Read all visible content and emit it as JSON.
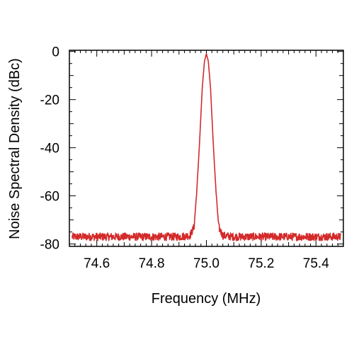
{
  "chart_data": {
    "type": "line",
    "title": "",
    "xlabel": "Frequency (MHz)",
    "ylabel": "Noise Spectral Density (dBc)",
    "xlim": [
      74.5,
      75.5
    ],
    "ylim": [
      -81,
      0.5
    ],
    "x_ticks": [
      "74.6",
      "74.8",
      "75.0",
      "75.2",
      "75.4"
    ],
    "y_ticks": [
      "0",
      "-20",
      "-40",
      "-60",
      "-80"
    ],
    "grid": false,
    "legend": "none",
    "series": [
      {
        "color": "#d42a2a",
        "x": [
          74.51,
          74.6,
          74.7,
          74.8,
          74.9,
          74.94,
          74.955,
          74.965,
          74.975,
          74.985,
          74.993,
          75.0,
          75.007,
          75.015,
          75.025,
          75.035,
          75.045,
          75.06,
          75.1,
          75.2,
          75.3,
          75.4,
          75.49
        ],
        "y": [
          -77,
          -77,
          -77,
          -77,
          -77,
          -76.5,
          -73,
          -58,
          -38,
          -15,
          -4,
          -1,
          -4,
          -15,
          -38,
          -58,
          -73,
          -76.5,
          -77,
          -77,
          -77,
          -77,
          -77
        ]
      }
    ]
  }
}
